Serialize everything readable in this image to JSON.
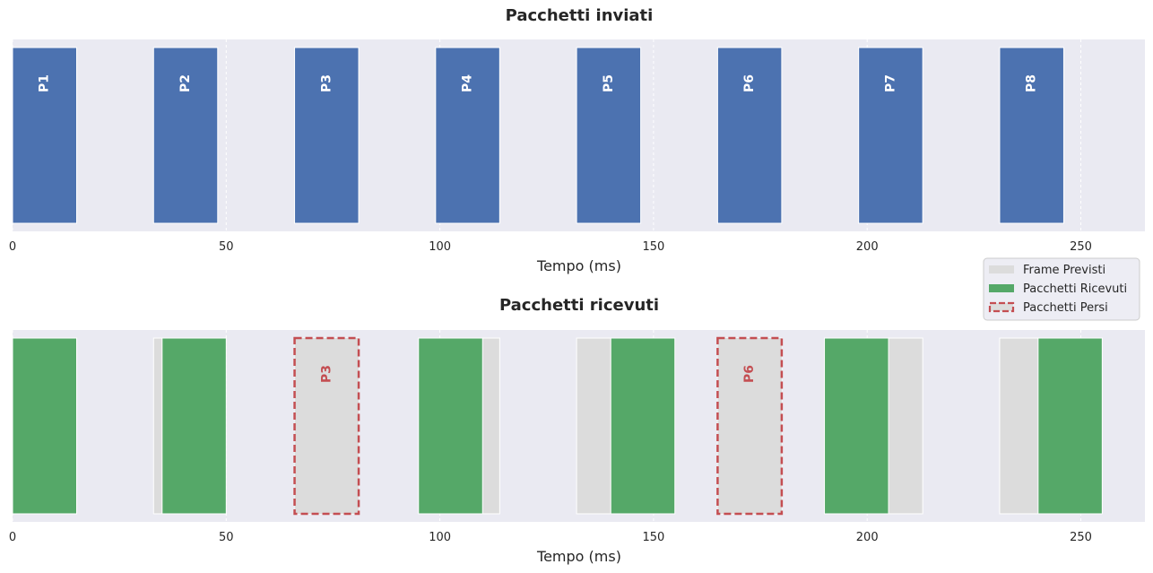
{
  "colors": {
    "axes_bg": "#eaeaf2",
    "grid": "#ffffff",
    "sent": "#4c72b0",
    "received": "#55a868",
    "expected": "#dcdcdc",
    "lost": "#c44e52"
  },
  "chart_data": [
    {
      "type": "bar",
      "title": "Pacchetti inviati",
      "xlabel": "Tempo (ms)",
      "ylabel": "",
      "xlim": [
        0,
        265
      ],
      "xticks": [
        0,
        50,
        100,
        150,
        200,
        250
      ],
      "grid": true,
      "packets": [
        {
          "label": "P1",
          "start": 0,
          "end": 15
        },
        {
          "label": "P2",
          "start": 33,
          "end": 48
        },
        {
          "label": "P3",
          "start": 66,
          "end": 81
        },
        {
          "label": "P4",
          "start": 99,
          "end": 114
        },
        {
          "label": "P5",
          "start": 132,
          "end": 147
        },
        {
          "label": "P6",
          "start": 165,
          "end": 180
        },
        {
          "label": "P7",
          "start": 198,
          "end": 213
        },
        {
          "label": "P8",
          "start": 231,
          "end": 246
        }
      ]
    },
    {
      "type": "bar",
      "title": "Pacchetti ricevuti",
      "xlabel": "Tempo (ms)",
      "ylabel": "",
      "xlim": [
        0,
        265
      ],
      "xticks": [
        0,
        50,
        100,
        150,
        200,
        250
      ],
      "grid": true,
      "legend_position": "top-right",
      "legend": [
        "Frame Previsti",
        "Pacchetti Ricevuti",
        "Pacchetti Persi"
      ],
      "expected_frames": [
        {
          "start": 0,
          "end": 15
        },
        {
          "start": 33,
          "end": 48
        },
        {
          "start": 66,
          "end": 81
        },
        {
          "start": 99,
          "end": 114
        },
        {
          "start": 132,
          "end": 147
        },
        {
          "start": 165,
          "end": 180
        },
        {
          "start": 198,
          "end": 213
        },
        {
          "start": 231,
          "end": 246
        }
      ],
      "received_packets": [
        {
          "start": 0,
          "end": 15
        },
        {
          "start": 35,
          "end": 50
        },
        {
          "start": 95,
          "end": 110
        },
        {
          "start": 140,
          "end": 155
        },
        {
          "start": 190,
          "end": 205
        },
        {
          "start": 240,
          "end": 255
        }
      ],
      "lost_packets": [
        {
          "label": "P3",
          "start": 66,
          "end": 81
        },
        {
          "label": "P6",
          "start": 165,
          "end": 180
        }
      ]
    }
  ]
}
